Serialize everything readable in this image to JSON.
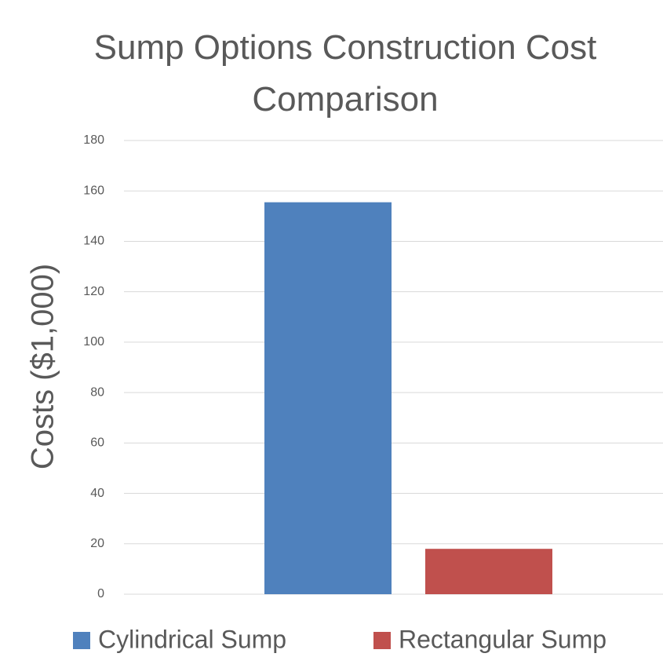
{
  "chart_data": {
    "type": "bar",
    "title": "Sump Options Construction Cost Comparison",
    "ylabel": "Costs ($1,000)",
    "categories": [
      null
    ],
    "series": [
      {
        "name": "Cylindrical Sump",
        "color": "#4f81bd",
        "values": [
          155.5
        ]
      },
      {
        "name": "Rectangular Sump",
        "color": "#c0504d",
        "values": [
          18
        ]
      }
    ],
    "ylim": [
      0,
      180
    ],
    "yticks": [
      0,
      20,
      40,
      60,
      80,
      100,
      120,
      140,
      160,
      180
    ],
    "grid": true,
    "legend": "bottom"
  }
}
